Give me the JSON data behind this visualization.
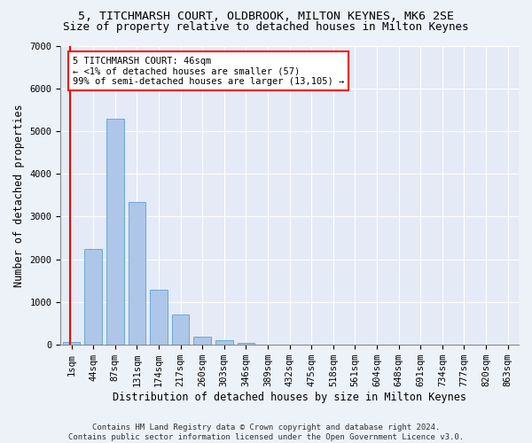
{
  "title_line1": "5, TITCHMARSH COURT, OLDBROOK, MILTON KEYNES, MK6 2SE",
  "title_line2": "Size of property relative to detached houses in Milton Keynes",
  "xlabel": "Distribution of detached houses by size in Milton Keynes",
  "ylabel": "Number of detached properties",
  "footnote": "Contains HM Land Registry data © Crown copyright and database right 2024.\nContains public sector information licensed under the Open Government Licence v3.0.",
  "categories": [
    "1sqm",
    "44sqm",
    "87sqm",
    "131sqm",
    "174sqm",
    "217sqm",
    "260sqm",
    "303sqm",
    "346sqm",
    "389sqm",
    "432sqm",
    "475sqm",
    "518sqm",
    "561sqm",
    "604sqm",
    "648sqm",
    "691sqm",
    "734sqm",
    "777sqm",
    "820sqm",
    "863sqm"
  ],
  "values": [
    57,
    2250,
    5300,
    3350,
    1300,
    700,
    200,
    100,
    50,
    5,
    3,
    2,
    1,
    1,
    0,
    0,
    0,
    0,
    0,
    0,
    0
  ],
  "bar_color": "#aec6e8",
  "bar_edge_color": "#5a9fd4",
  "annotation_text": "5 TITCHMARSH COURT: 46sqm\n← <1% of detached houses are smaller (57)\n99% of semi-detached houses are larger (13,105) →",
  "ylim": [
    0,
    7000
  ],
  "background_color": "#edf1f8",
  "plot_bg_color": "#e4eaf6",
  "grid_color": "#ffffff",
  "title_fontsize": 9.5,
  "subtitle_fontsize": 9,
  "axis_label_fontsize": 8.5,
  "tick_fontsize": 7.5,
  "annot_fontsize": 7.5,
  "footnote_fontsize": 6.5
}
